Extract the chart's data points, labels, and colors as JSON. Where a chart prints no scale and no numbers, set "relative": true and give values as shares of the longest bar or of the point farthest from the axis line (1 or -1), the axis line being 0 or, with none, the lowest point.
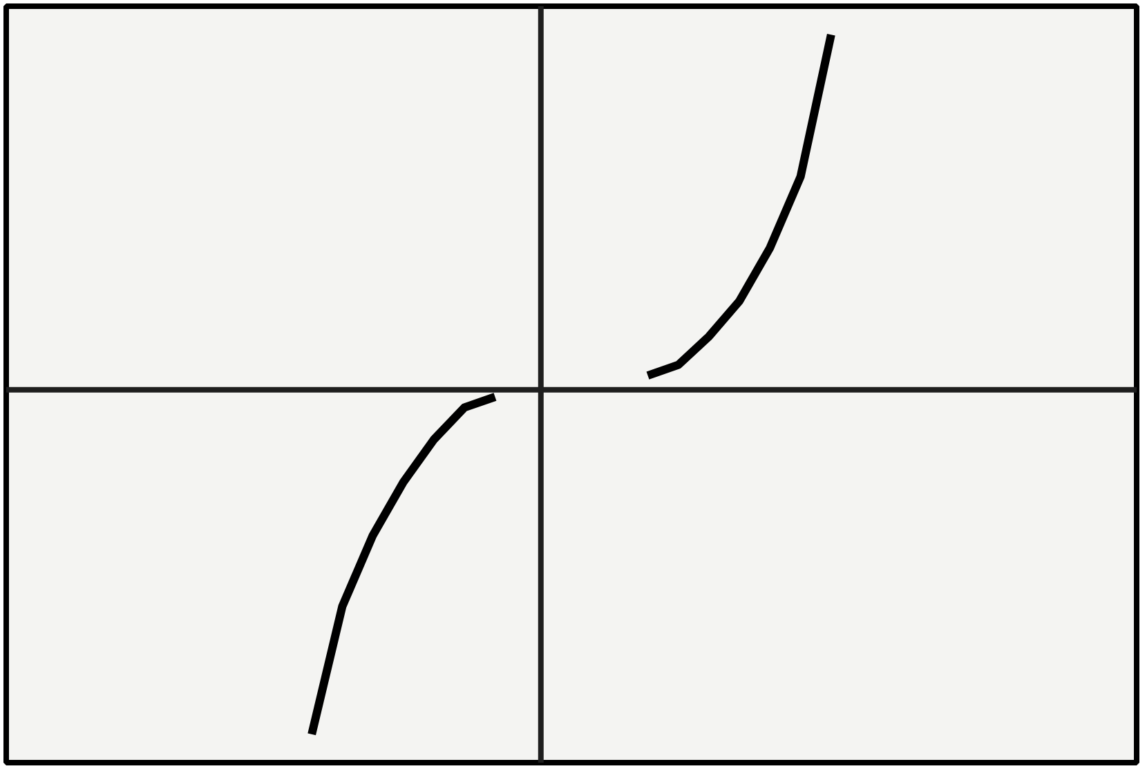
{
  "chart_data": {
    "type": "line",
    "relative": true,
    "categories": [
      null,
      null,
      null,
      null,
      null,
      null,
      null,
      null,
      null,
      null,
      null,
      null,
      null,
      null,
      null,
      null,
      null,
      null
    ],
    "series": [
      {
        "color": "#000000",
        "values": [
          -0.97,
          -0.61,
          -0.41,
          -0.26,
          -0.14,
          -0.05,
          -0.02,
          null,
          null,
          null,
          null,
          null,
          null,
          null,
          null,
          null,
          null,
          null
        ]
      },
      {
        "color": "#000000",
        "values": [
          null,
          null,
          null,
          null,
          null,
          null,
          null,
          null,
          null,
          null,
          null,
          0.04,
          0.07,
          0.15,
          0.25,
          0.4,
          0.6,
          1
        ]
      }
    ]
  }
}
